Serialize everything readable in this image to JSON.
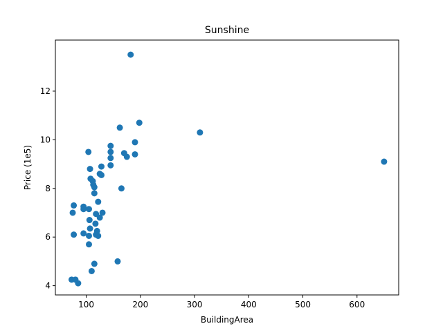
{
  "chart_data": {
    "type": "scatter",
    "title": "Sunshine",
    "xlabel": "BuildingArea",
    "ylabel": "Price (1e5)",
    "xlim": [
      43,
      677
    ],
    "ylim": [
      3.62,
      14.1
    ],
    "xticks": [
      100,
      200,
      300,
      400,
      500,
      600
    ],
    "xtick_labels": [
      "100",
      "200",
      "300",
      "400",
      "500",
      "600"
    ],
    "yticks": [
      4,
      6,
      8,
      10,
      12
    ],
    "ytick_labels": [
      "4",
      "6",
      "8",
      "10",
      "12"
    ],
    "grid": false,
    "marker_color": "#1f77b4",
    "series": [
      {
        "points": [
          [
            182,
            13.5
          ],
          [
            162,
            10.5
          ],
          [
            198,
            10.7
          ],
          [
            310,
            10.3
          ],
          [
            650,
            9.1
          ],
          [
            190,
            9.9
          ],
          [
            145,
            9.75
          ],
          [
            104,
            9.5
          ],
          [
            145,
            9.5
          ],
          [
            170,
            9.45
          ],
          [
            190,
            9.4
          ],
          [
            175,
            9.3
          ],
          [
            145,
            9.25
          ],
          [
            145,
            8.95
          ],
          [
            128,
            8.9
          ],
          [
            107,
            8.8
          ],
          [
            125,
            8.6
          ],
          [
            128,
            8.55
          ],
          [
            108,
            8.4
          ],
          [
            112,
            8.3
          ],
          [
            113,
            8.15
          ],
          [
            115,
            8.05
          ],
          [
            165,
            8.0
          ],
          [
            115,
            7.8
          ],
          [
            122,
            7.45
          ],
          [
            77,
            7.3
          ],
          [
            95,
            7.25
          ],
          [
            95,
            7.15
          ],
          [
            105,
            7.15
          ],
          [
            75,
            7.0
          ],
          [
            130,
            7.0
          ],
          [
            118,
            6.95
          ],
          [
            125,
            6.8
          ],
          [
            106,
            6.7
          ],
          [
            117,
            6.55
          ],
          [
            107,
            6.35
          ],
          [
            120,
            6.25
          ],
          [
            95,
            6.15
          ],
          [
            77,
            6.1
          ],
          [
            118,
            6.1
          ],
          [
            122,
            6.05
          ],
          [
            105,
            6.05
          ],
          [
            105,
            5.7
          ],
          [
            158,
            5.0
          ],
          [
            115,
            4.9
          ],
          [
            110,
            4.6
          ],
          [
            73,
            4.25
          ],
          [
            80,
            4.25
          ],
          [
            85,
            4.1
          ]
        ]
      }
    ]
  }
}
